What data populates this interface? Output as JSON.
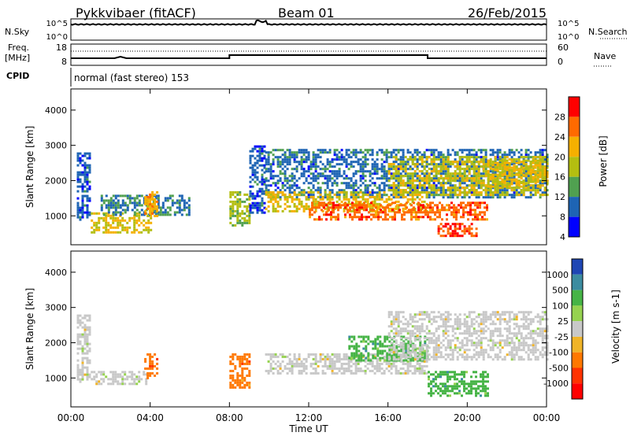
{
  "header": {
    "station": "Pykkvibaer (fitACF)",
    "beam": "Beam 01",
    "date": "26/Feb/2015"
  },
  "noise_panel": {
    "left_label": "N.Sky",
    "right_label": "N.Search",
    "ticks": [
      "10^5",
      "10^0"
    ]
  },
  "freq_panel": {
    "left_label_1": "Freq.",
    "left_label_2": "[MHz]",
    "left_ticks": [
      "18",
      "8"
    ],
    "right_label": "Nave",
    "right_ticks": [
      "60",
      "0"
    ],
    "cpid_label": "CPID",
    "cpid_text": "normal (fast stereo) 153"
  },
  "time_axis": {
    "label": "Time UT",
    "ticks": [
      "00:00",
      "04:00",
      "08:00",
      "12:00",
      "16:00",
      "20:00",
      "00:00"
    ]
  },
  "chart_data": [
    {
      "type": "heatmap",
      "title": "",
      "quantity": "Power",
      "unit": "dB",
      "colorbar_label": "Power [dB]",
      "colorbar_ticks": [
        "28",
        "24",
        "20",
        "16",
        "12",
        "8",
        "4"
      ],
      "colorbar_colors": [
        "#ff0000",
        "#ff6a00",
        "#f5b000",
        "#b4be10",
        "#50a050",
        "#1e64b4",
        "#0000ff"
      ],
      "xlabel": "",
      "ylabel": "Slant Range [km]",
      "y_ticks": [
        "4000",
        "3000",
        "2000",
        "1000"
      ],
      "x_range_hours": [
        0,
        24
      ],
      "y_range_km": [
        180,
        4600
      ],
      "regions": [
        {
          "t0": 0.3,
          "t1": 1.0,
          "r0": 900,
          "r1": 2800,
          "level": 8
        },
        {
          "t0": 1.0,
          "t1": 4.0,
          "r0": 500,
          "r1": 1100,
          "level": 20
        },
        {
          "t0": 1.5,
          "t1": 6.0,
          "r0": 1000,
          "r1": 1600,
          "level": 10
        },
        {
          "t0": 3.7,
          "t1": 4.4,
          "r0": 1000,
          "r1": 1700,
          "level": 22
        },
        {
          "t0": 8.0,
          "t1": 9.0,
          "r0": 700,
          "r1": 1700,
          "level": 16
        },
        {
          "t0": 9.0,
          "t1": 9.8,
          "r0": 1100,
          "r1": 3000,
          "level": 8
        },
        {
          "t0": 9.8,
          "t1": 24.0,
          "r0": 1500,
          "r1": 2900,
          "level": 9
        },
        {
          "t0": 9.8,
          "t1": 18.0,
          "r0": 1100,
          "r1": 1700,
          "level": 20
        },
        {
          "t0": 12.0,
          "t1": 21.0,
          "r0": 900,
          "r1": 1400,
          "level": 26
        },
        {
          "t0": 16.0,
          "t1": 24.0,
          "r0": 1600,
          "r1": 2700,
          "level": 18
        },
        {
          "t0": 18.5,
          "t1": 20.5,
          "r0": 450,
          "r1": 800,
          "level": 28
        },
        {
          "t0": 21.0,
          "t1": 24.0,
          "r0": 1800,
          "r1": 2600,
          "level": 20
        }
      ]
    },
    {
      "type": "heatmap",
      "title": "",
      "quantity": "Velocity",
      "unit": "m s^-1",
      "colorbar_label": "Velocity [m s-1]",
      "colorbar_ticks": [
        "1000",
        "500",
        "100",
        "25",
        "-25",
        "-100",
        "-500",
        "-1000"
      ],
      "colorbar_colors": [
        "#1e46b4",
        "#3c8ca0",
        "#46b446",
        "#96d250",
        "#c8c8c8",
        "#f0b428",
        "#ff7800",
        "#ff3200",
        "#ff0000"
      ],
      "xlabel": "Time UT",
      "ylabel": "Slant Range [km]",
      "y_ticks": [
        "4000",
        "3000",
        "2000",
        "1000"
      ],
      "x_range_hours": [
        0,
        24
      ],
      "y_range_km": [
        180,
        4600
      ],
      "regions": [
        {
          "t0": 0.3,
          "t1": 1.0,
          "r0": 900,
          "r1": 2800,
          "velocity": 0
        },
        {
          "t0": 1.0,
          "t1": 3.8,
          "r0": 800,
          "r1": 1200,
          "velocity": 0
        },
        {
          "t0": 3.7,
          "t1": 4.4,
          "r0": 1000,
          "r1": 1700,
          "velocity": -200
        },
        {
          "t0": 8.0,
          "t1": 9.0,
          "r0": 700,
          "r1": 1700,
          "velocity": -300
        },
        {
          "t0": 9.8,
          "t1": 18.0,
          "r0": 1100,
          "r1": 1700,
          "velocity": 0
        },
        {
          "t0": 14.0,
          "t1": 18.0,
          "r0": 1500,
          "r1": 2200,
          "velocity": 150
        },
        {
          "t0": 16.0,
          "t1": 24.0,
          "r0": 1500,
          "r1": 2900,
          "velocity": 0
        },
        {
          "t0": 18.0,
          "t1": 21.0,
          "r0": 500,
          "r1": 1200,
          "velocity": 150
        }
      ]
    }
  ]
}
